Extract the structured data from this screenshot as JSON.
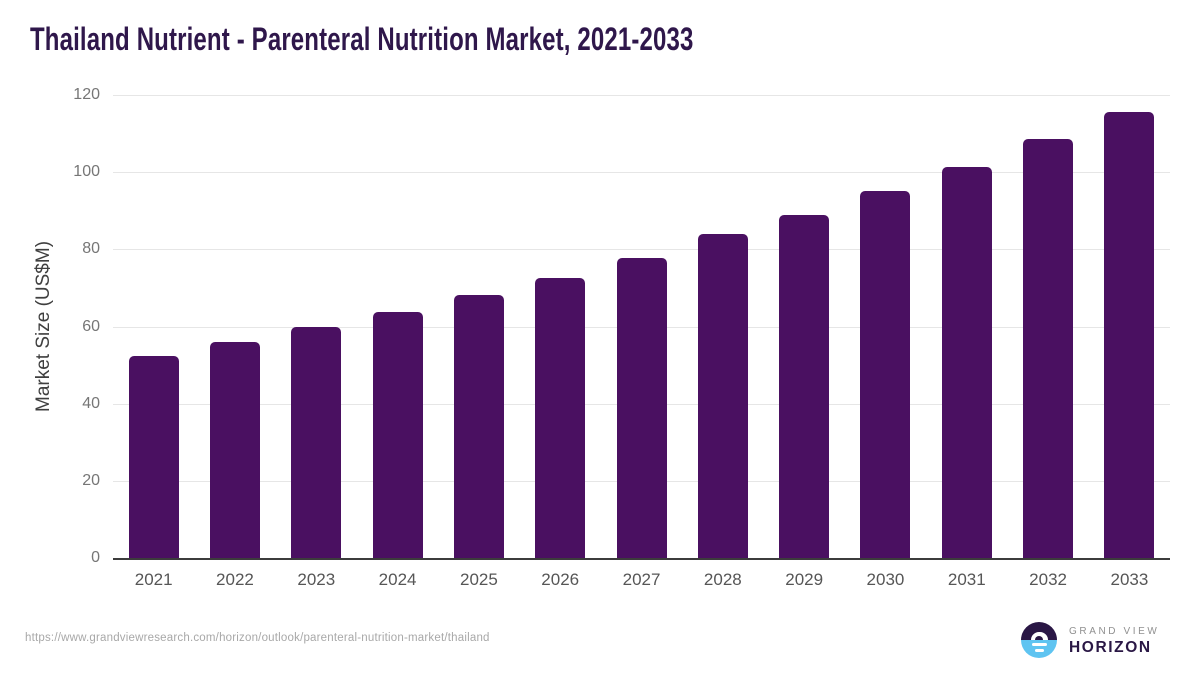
{
  "title": "Thailand Nutrient - Parenteral Nutrition Market, 2021-2033",
  "source_url": "https://www.grandviewresearch.com/horizon/outlook/parenteral-nutrition-market/thailand",
  "branding": {
    "logo_name": "grand-view-horizon-logo",
    "line1": "GRAND VIEW",
    "line2": "HORIZON"
  },
  "colors": {
    "bar": "#4a1061",
    "title": "#2f174b",
    "axis_line": "#3c3c3c",
    "gridline": "#e6e6e6",
    "y_tick_label": "#767676",
    "x_tick_label": "#565656",
    "url_text": "#a8a8a8",
    "logo_dark_purple": "#2a1745",
    "logo_light_blue": "#5fc4f1",
    "logo_gray_text": "#909090"
  },
  "chart_data": {
    "type": "bar",
    "title": "Thailand Nutrient - Parenteral Nutrition Market, 2021-2033",
    "categories": [
      "2021",
      "2022",
      "2023",
      "2024",
      "2025",
      "2026",
      "2027",
      "2028",
      "2029",
      "2030",
      "2031",
      "2032",
      "2033"
    ],
    "values": [
      52.4,
      56.1,
      59.8,
      63.8,
      68.2,
      72.7,
      77.7,
      83.9,
      88.8,
      95.2,
      101.4,
      108.5,
      115.6
    ],
    "xlabel": "",
    "ylabel": "Market Size (US$M)",
    "ylim": [
      0,
      120
    ],
    "yticks": [
      0,
      20,
      40,
      60,
      80,
      100,
      120
    ],
    "grid": true,
    "legend": false,
    "bar_color": "#4a1061"
  }
}
